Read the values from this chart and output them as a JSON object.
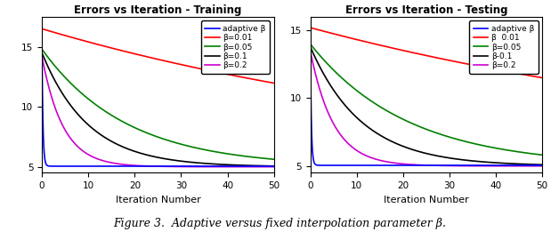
{
  "title_left": "Errors vs Iteration - Training",
  "title_right": "Errors vs Iteration - Testing",
  "xlabel": "Iteration Number",
  "figcaption": "Figure 3.  Adaptive versus fixed interpolation parameter β.",
  "background_color": "#ffffff",
  "xlim": [
    0,
    50
  ],
  "ylim_train": [
    4.5,
    17.5
  ],
  "ylim_test": [
    4.5,
    16.0
  ],
  "yticks": [
    5,
    10,
    15
  ],
  "xticks": [
    0,
    10,
    20,
    30,
    40,
    50
  ],
  "n_points": 500,
  "train_curves": {
    "adaptive": {
      "start": 14.8,
      "floor": 5.05,
      "rate": 4.5
    },
    "b001": {
      "start": 16.5,
      "floor": 5.0,
      "rate": 0.01
    },
    "b005": {
      "start": 14.8,
      "floor": 5.0,
      "rate": 0.055
    },
    "b01": {
      "start": 14.5,
      "floor": 5.0,
      "rate": 0.1
    },
    "b02": {
      "start": 14.2,
      "floor": 5.0,
      "rate": 0.22
    }
  },
  "test_curves": {
    "adaptive": {
      "start": 14.2,
      "floor": 5.05,
      "rate": 4.5
    },
    "b001": {
      "start": 15.2,
      "floor": 5.0,
      "rate": 0.009
    },
    "b005": {
      "start": 14.0,
      "floor": 5.0,
      "rate": 0.048
    },
    "b01": {
      "start": 13.8,
      "floor": 5.0,
      "rate": 0.09
    },
    "b02": {
      "start": 13.5,
      "floor": 5.0,
      "rate": 0.2
    }
  },
  "colors": {
    "adaptive": "#0000ff",
    "b001": "#ff0000",
    "b005": "#008000",
    "b01": "#000000",
    "b02": "#cc00cc"
  },
  "legend_train": [
    "adaptive β",
    "β=0.01",
    "β=0.05",
    "β=0.1",
    "β=0.2"
  ],
  "legend_test": [
    "adaptive β",
    "β  0.01",
    "β=0.05",
    "β-0.1",
    "β=0.2"
  ],
  "legend_colors": [
    "#0000ff",
    "#ff0000",
    "#008000",
    "#000000",
    "#cc00cc"
  ]
}
